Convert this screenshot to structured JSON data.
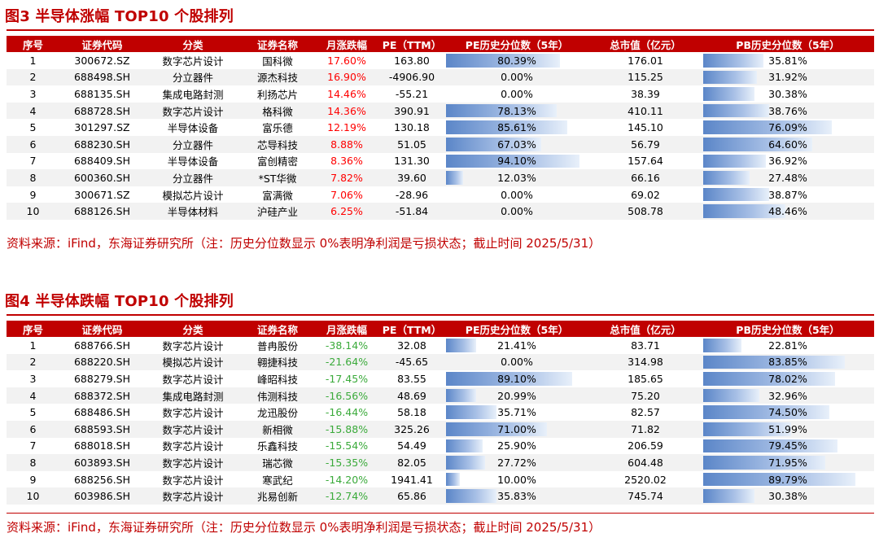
{
  "headers": [
    "序号",
    "证券代码",
    "分类",
    "证券名称",
    "月涨跌幅",
    "PE（TTM）",
    "PE历史分位数（5年）",
    "总市值（亿元）",
    "PB历史分位数（5年）"
  ],
  "colors": {
    "title": "#c00000",
    "header_bg": "#c00000",
    "up": "#ff0000",
    "down": "#3aaa3a",
    "bar": "#5b86c8"
  },
  "fig3": {
    "title": "图3  半导体涨幅 TOP10 个股排列",
    "source": "资料来源：iFind，东海证券研究所（注：历史分位数显示 0%表明净利润是亏损状态；截止时间 2025/5/31）",
    "rows": [
      {
        "no": "1",
        "code": "300672.SZ",
        "cat": "数字芯片设计",
        "name": "国科微",
        "chg": "17.60%",
        "pe": "163.80",
        "pe_pct": "80.39%",
        "pe_pct_v": 80.39,
        "mcap": "176.01",
        "pb_pct": "35.81%",
        "pb_pct_v": 35.81
      },
      {
        "no": "2",
        "code": "688498.SH",
        "cat": "分立器件",
        "name": "源杰科技",
        "chg": "16.90%",
        "pe": "-4906.90",
        "pe_pct": "0.00%",
        "pe_pct_v": 0,
        "mcap": "115.25",
        "pb_pct": "31.92%",
        "pb_pct_v": 31.92
      },
      {
        "no": "3",
        "code": "688135.SH",
        "cat": "集成电路封测",
        "name": "利扬芯片",
        "chg": "14.46%",
        "pe": "-55.21",
        "pe_pct": "0.00%",
        "pe_pct_v": 0,
        "mcap": "38.39",
        "pb_pct": "30.38%",
        "pb_pct_v": 30.38
      },
      {
        "no": "4",
        "code": "688728.SH",
        "cat": "数字芯片设计",
        "name": "格科微",
        "chg": "14.36%",
        "pe": "390.91",
        "pe_pct": "78.13%",
        "pe_pct_v": 78.13,
        "mcap": "410.11",
        "pb_pct": "38.76%",
        "pb_pct_v": 38.76
      },
      {
        "no": "5",
        "code": "301297.SZ",
        "cat": "半导体设备",
        "name": "富乐德",
        "chg": "12.19%",
        "pe": "130.18",
        "pe_pct": "85.61%",
        "pe_pct_v": 85.61,
        "mcap": "145.10",
        "pb_pct": "76.09%",
        "pb_pct_v": 76.09
      },
      {
        "no": "6",
        "code": "688230.SH",
        "cat": "分立器件",
        "name": "芯导科技",
        "chg": "8.88%",
        "pe": "51.05",
        "pe_pct": "67.03%",
        "pe_pct_v": 67.03,
        "mcap": "56.79",
        "pb_pct": "64.60%",
        "pb_pct_v": 64.6
      },
      {
        "no": "7",
        "code": "688409.SH",
        "cat": "半导体设备",
        "name": "富创精密",
        "chg": "8.36%",
        "pe": "131.30",
        "pe_pct": "94.10%",
        "pe_pct_v": 94.1,
        "mcap": "157.64",
        "pb_pct": "36.92%",
        "pb_pct_v": 36.92
      },
      {
        "no": "8",
        "code": "600360.SH",
        "cat": "分立器件",
        "name": "*ST华微",
        "chg": "7.82%",
        "pe": "39.60",
        "pe_pct": "12.03%",
        "pe_pct_v": 12.03,
        "mcap": "66.16",
        "pb_pct": "27.48%",
        "pb_pct_v": 27.48
      },
      {
        "no": "9",
        "code": "300671.SZ",
        "cat": "模拟芯片设计",
        "name": "富满微",
        "chg": "7.06%",
        "pe": "-28.96",
        "pe_pct": "0.00%",
        "pe_pct_v": 0,
        "mcap": "69.02",
        "pb_pct": "38.87%",
        "pb_pct_v": 38.87
      },
      {
        "no": "10",
        "code": "688126.SH",
        "cat": "半导体材料",
        "name": "沪硅产业",
        "chg": "6.25%",
        "pe": "-51.84",
        "pe_pct": "0.00%",
        "pe_pct_v": 0,
        "mcap": "508.78",
        "pb_pct": "48.46%",
        "pb_pct_v": 48.46
      }
    ]
  },
  "fig4": {
    "title": "图4  半导体跌幅 TOP10 个股排列",
    "source": "资料来源：iFind，东海证券研究所（注：历史分位数显示 0%表明净利润是亏损状态；截止时间 2025/5/31）",
    "rows": [
      {
        "no": "1",
        "code": "688766.SH",
        "cat": "数字芯片设计",
        "name": "普冉股份",
        "chg": "-38.14%",
        "pe": "32.08",
        "pe_pct": "21.41%",
        "pe_pct_v": 21.41,
        "mcap": "83.71",
        "pb_pct": "22.81%",
        "pb_pct_v": 22.81
      },
      {
        "no": "2",
        "code": "688220.SH",
        "cat": "模拟芯片设计",
        "name": "翱捷科技",
        "chg": "-21.64%",
        "pe": "-45.65",
        "pe_pct": "0.00%",
        "pe_pct_v": 0,
        "mcap": "314.98",
        "pb_pct": "83.85%",
        "pb_pct_v": 83.85
      },
      {
        "no": "3",
        "code": "688279.SH",
        "cat": "数字芯片设计",
        "name": "峰昭科技",
        "chg": "-17.45%",
        "pe": "83.55",
        "pe_pct": "89.10%",
        "pe_pct_v": 89.1,
        "mcap": "185.65",
        "pb_pct": "78.02%",
        "pb_pct_v": 78.02
      },
      {
        "no": "4",
        "code": "688372.SH",
        "cat": "集成电路封测",
        "name": "伟测科技",
        "chg": "-16.56%",
        "pe": "48.69",
        "pe_pct": "20.99%",
        "pe_pct_v": 20.99,
        "mcap": "75.20",
        "pb_pct": "32.96%",
        "pb_pct_v": 32.96
      },
      {
        "no": "5",
        "code": "688486.SH",
        "cat": "数字芯片设计",
        "name": "龙迅股份",
        "chg": "-16.44%",
        "pe": "58.18",
        "pe_pct": "35.71%",
        "pe_pct_v": 35.71,
        "mcap": "82.57",
        "pb_pct": "74.50%",
        "pb_pct_v": 74.5
      },
      {
        "no": "6",
        "code": "688593.SH",
        "cat": "数字芯片设计",
        "name": "新相微",
        "chg": "-15.88%",
        "pe": "325.26",
        "pe_pct": "71.00%",
        "pe_pct_v": 71.0,
        "mcap": "71.82",
        "pb_pct": "51.99%",
        "pb_pct_v": 51.99
      },
      {
        "no": "7",
        "code": "688018.SH",
        "cat": "数字芯片设计",
        "name": "乐鑫科技",
        "chg": "-15.54%",
        "pe": "54.49",
        "pe_pct": "25.90%",
        "pe_pct_v": 25.9,
        "mcap": "206.59",
        "pb_pct": "79.45%",
        "pb_pct_v": 79.45
      },
      {
        "no": "8",
        "code": "603893.SH",
        "cat": "数字芯片设计",
        "name": "瑞芯微",
        "chg": "-15.35%",
        "pe": "82.05",
        "pe_pct": "27.72%",
        "pe_pct_v": 27.72,
        "mcap": "604.48",
        "pb_pct": "71.95%",
        "pb_pct_v": 71.95
      },
      {
        "no": "9",
        "code": "688256.SH",
        "cat": "数字芯片设计",
        "name": "寒武纪",
        "chg": "-14.20%",
        "pe": "1941.41",
        "pe_pct": "10.00%",
        "pe_pct_v": 10.0,
        "mcap": "2520.02",
        "pb_pct": "89.79%",
        "pb_pct_v": 89.79
      },
      {
        "no": "10",
        "code": "603986.SH",
        "cat": "数字芯片设计",
        "name": "兆易创新",
        "chg": "-12.74%",
        "pe": "65.86",
        "pe_pct": "35.83%",
        "pe_pct_v": 35.83,
        "mcap": "745.74",
        "pb_pct": "30.38%",
        "pb_pct_v": 30.38
      }
    ]
  }
}
